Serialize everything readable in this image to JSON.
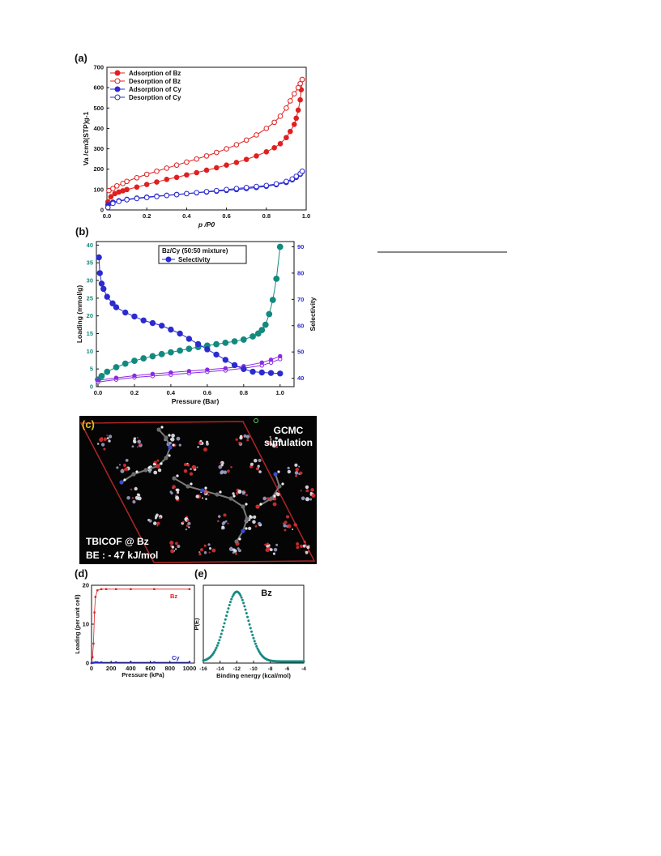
{
  "page": {
    "title": "",
    "separator_line": true
  },
  "panels": {
    "a": {
      "label": "(a)"
    },
    "b": {
      "label": "(b)"
    },
    "c": {
      "label": "(c)",
      "header_line1": "GCMC",
      "header_line2": "simulation",
      "caption_line1": "TBICOF @ Bz",
      "caption_line2": "BE : - 47 kJ/mol"
    },
    "d": {
      "label": "(d)"
    },
    "e": {
      "label": "(e)"
    }
  },
  "colors": {
    "red": "#e02020",
    "blue": "#2b2bd0",
    "teal": "#138a80",
    "purple": "#8a2be2",
    "dark": "#1a1a1a"
  },
  "chart_data": [
    {
      "id": "a",
      "type": "line",
      "xlabel": "p /P0",
      "ylabel": "Va /cm3(STP)g-1",
      "xlim": [
        0,
        1.0
      ],
      "ylim": [
        0,
        700
      ],
      "xticks": [
        "0.0",
        "0.2",
        "0.4",
        "0.6",
        "0.8",
        "1.0"
      ],
      "yticks": [
        "0",
        "100",
        "200",
        "300",
        "400",
        "500",
        "600",
        "700"
      ],
      "legend_position": "top-left",
      "series": [
        {
          "name": "Adsorption of Bz",
          "color": "#e02020",
          "marker": "filled",
          "x": [
            0.005,
            0.02,
            0.04,
            0.06,
            0.08,
            0.1,
            0.15,
            0.2,
            0.25,
            0.3,
            0.35,
            0.4,
            0.45,
            0.5,
            0.55,
            0.6,
            0.65,
            0.7,
            0.75,
            0.8,
            0.84,
            0.87,
            0.9,
            0.92,
            0.94,
            0.95,
            0.96,
            0.97,
            0.975,
            0.98
          ],
          "y": [
            40,
            65,
            80,
            88,
            94,
            100,
            112,
            125,
            137,
            150,
            160,
            172,
            183,
            195,
            207,
            220,
            233,
            248,
            265,
            285,
            305,
            325,
            355,
            385,
            420,
            450,
            490,
            540,
            590,
            640
          ]
        },
        {
          "name": "Desorption of Bz",
          "color": "#e02020",
          "marker": "open",
          "x": [
            0.01,
            0.03,
            0.05,
            0.08,
            0.1,
            0.15,
            0.2,
            0.25,
            0.3,
            0.35,
            0.4,
            0.45,
            0.5,
            0.55,
            0.6,
            0.65,
            0.7,
            0.75,
            0.8,
            0.84,
            0.87,
            0.9,
            0.92,
            0.94,
            0.96,
            0.97,
            0.98
          ],
          "y": [
            95,
            105,
            118,
            130,
            140,
            158,
            175,
            190,
            205,
            220,
            235,
            250,
            265,
            282,
            300,
            320,
            343,
            368,
            400,
            430,
            460,
            500,
            535,
            570,
            600,
            620,
            640
          ]
        },
        {
          "name": "Adsorption of Cy",
          "color": "#2b2bd0",
          "marker": "filled",
          "x": [
            0.005,
            0.03,
            0.06,
            0.1,
            0.15,
            0.2,
            0.25,
            0.3,
            0.35,
            0.4,
            0.45,
            0.5,
            0.55,
            0.6,
            0.65,
            0.7,
            0.75,
            0.8,
            0.85,
            0.9,
            0.93,
            0.95,
            0.97,
            0.98
          ],
          "y": [
            25,
            38,
            45,
            52,
            58,
            63,
            68,
            72,
            76,
            80,
            84,
            88,
            92,
            96,
            100,
            105,
            110,
            116,
            124,
            135,
            148,
            160,
            175,
            188
          ]
        },
        {
          "name": "Desorption of Cy",
          "color": "#2b2bd0",
          "marker": "open",
          "x": [
            0.005,
            0.03,
            0.06,
            0.1,
            0.15,
            0.2,
            0.25,
            0.3,
            0.35,
            0.4,
            0.45,
            0.5,
            0.55,
            0.6,
            0.65,
            0.7,
            0.75,
            0.8,
            0.85,
            0.9,
            0.93,
            0.95,
            0.97,
            0.98
          ],
          "y": [
            12,
            32,
            42,
            50,
            56,
            61,
            66,
            71,
            75,
            80,
            85,
            90,
            95,
            100,
            105,
            110,
            115,
            120,
            128,
            140,
            152,
            165,
            178,
            190
          ]
        }
      ]
    },
    {
      "id": "b",
      "type": "line",
      "xlabel": "Pressure (Bar)",
      "ylabel": "Loading (mmol/g)",
      "ylabel_right": "Selectivity",
      "xlim": [
        0,
        1.05
      ],
      "ylim": [
        0,
        41
      ],
      "ylim_right": [
        36.8,
        92
      ],
      "xticks": [
        "0.0",
        "0.2",
        "0.4",
        "0.6",
        "0.8",
        "1.0"
      ],
      "yticks": [
        "0",
        "5",
        "10",
        "15",
        "20",
        "25",
        "30",
        "35",
        "40"
      ],
      "yticks_right": [
        "40",
        "50",
        "60",
        "70",
        "80",
        "90"
      ],
      "legend_position": "top-center",
      "legend_title": "Bz/Cy (50:50 mixture)",
      "series": [
        {
          "name": "",
          "axis": "left",
          "color": "#138a80",
          "marker": "filled",
          "x": [
            0.0,
            0.02,
            0.05,
            0.1,
            0.15,
            0.2,
            0.25,
            0.3,
            0.35,
            0.4,
            0.45,
            0.5,
            0.55,
            0.6,
            0.65,
            0.7,
            0.75,
            0.8,
            0.85,
            0.88,
            0.9,
            0.92,
            0.94,
            0.96,
            0.98,
            1.0
          ],
          "y": [
            2.0,
            3.0,
            4.2,
            5.5,
            6.5,
            7.3,
            8.0,
            8.6,
            9.2,
            9.7,
            10.2,
            10.7,
            11.2,
            11.6,
            12.0,
            12.4,
            12.8,
            13.3,
            14.2,
            15.0,
            16.0,
            17.5,
            20.5,
            24.5,
            30.5,
            39.5
          ]
        },
        {
          "name": "",
          "axis": "left",
          "color": "#8a2be2",
          "marker": "open",
          "x": [
            0.0,
            0.1,
            0.2,
            0.3,
            0.4,
            0.5,
            0.6,
            0.7,
            0.8,
            0.9,
            0.95,
            1.0
          ],
          "y": [
            1.3,
            2.0,
            2.6,
            3.0,
            3.4,
            3.8,
            4.2,
            4.6,
            5.2,
            6.0,
            6.8,
            7.8
          ]
        },
        {
          "name": "",
          "axis": "left",
          "color": "#8a2be2",
          "marker": "filled",
          "x": [
            0.0,
            0.1,
            0.2,
            0.3,
            0.4,
            0.5,
            0.6,
            0.7,
            0.8,
            0.9,
            0.95,
            1.0
          ],
          "y": [
            1.8,
            2.5,
            3.1,
            3.6,
            4.0,
            4.4,
            4.8,
            5.2,
            5.8,
            6.8,
            7.6,
            8.6
          ]
        },
        {
          "name": "Selectivity",
          "axis": "right",
          "color": "#2b2bd0",
          "marker": "filled",
          "x": [
            0.005,
            0.01,
            0.02,
            0.03,
            0.05,
            0.08,
            0.1,
            0.15,
            0.2,
            0.25,
            0.3,
            0.35,
            0.4,
            0.45,
            0.5,
            0.55,
            0.6,
            0.65,
            0.7,
            0.75,
            0.8,
            0.85,
            0.9,
            0.95,
            1.0
          ],
          "y": [
            86,
            80,
            76,
            74,
            71,
            68.5,
            67,
            65,
            63.5,
            62,
            61,
            60,
            58.5,
            57,
            55,
            53,
            51,
            49,
            47,
            45,
            43.5,
            42.5,
            42.2,
            42.0,
            41.8
          ]
        }
      ]
    },
    {
      "id": "d",
      "type": "line",
      "xlabel": "Pressure (kPa)",
      "ylabel": "Loading (per unit cell)",
      "xlim": [
        0,
        1050
      ],
      "ylim": [
        0,
        20
      ],
      "xticks": [
        "0",
        "200",
        "400",
        "600",
        "800",
        "1000"
      ],
      "yticks": [
        "0",
        "10",
        "20"
      ],
      "series": [
        {
          "name": "Bz",
          "color": "#e02020",
          "x": [
            0,
            10,
            20,
            30,
            40,
            60,
            100,
            150,
            250,
            400,
            640,
            1000
          ],
          "y": [
            0,
            1.5,
            5,
            13,
            17,
            18.7,
            19,
            19,
            19,
            19,
            19,
            19
          ]
        },
        {
          "name": "Cy",
          "color": "#2b2bd0",
          "x": [
            0,
            10,
            20,
            40,
            60,
            100,
            250,
            400,
            640,
            1000
          ],
          "y": [
            0,
            0.1,
            0.1,
            0.2,
            0.2,
            0.2,
            0.2,
            0.2,
            0.2,
            0.2
          ]
        }
      ]
    },
    {
      "id": "e",
      "type": "scatter",
      "title": "Bz",
      "xlabel": "Binding energy (kcal/mol)",
      "ylabel": "P(E)",
      "xlim": [
        -16,
        -4
      ],
      "xticks": [
        "-16",
        "-14",
        "-12",
        "-10",
        "-8",
        "-6",
        "-4"
      ],
      "gaussian": {
        "mean": -12,
        "sigma": 1.35,
        "range": [
          -16,
          -4
        ],
        "step": 0.12
      }
    }
  ]
}
